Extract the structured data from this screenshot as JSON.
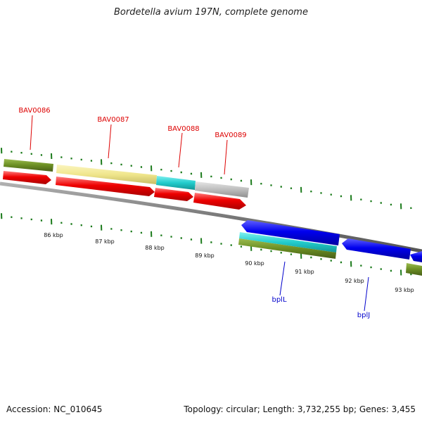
{
  "title": "Bordetella avium 197N, complete genome",
  "footer": {
    "accession": "Accession: NC_010645",
    "summary": "Topology: circular; Length: 3,732,255 bp; Genes: 3,455"
  },
  "colors": {
    "backbone": "#777777",
    "tick": "#1a7a1a",
    "gene_label_forward": "#dd0000",
    "gene_label_reverse": "#0000cc",
    "cds_red": "#ee0000",
    "cds_blue": "#0000ee",
    "olive": "#6b8e23",
    "khaki": "#f0e68c",
    "cyan": "#22cccc",
    "grey": "#bdbdbd"
  },
  "scale_labels": [
    "86 kbp",
    "87 kbp",
    "88 kbp",
    "89 kbp",
    "90 kbp",
    "91 kbp",
    "92 kbp",
    "93 kbp"
  ],
  "gene_labels": {
    "forward": [
      "BAV0086",
      "BAV0087",
      "BAV0088",
      "BAV0089"
    ],
    "reverse": [
      "bplL",
      "bplJ"
    ]
  }
}
